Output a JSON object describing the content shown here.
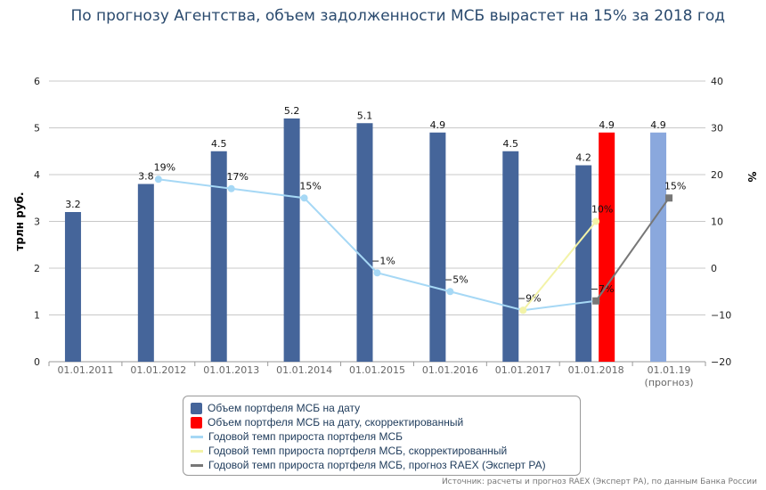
{
  "chart_data": {
    "type": "bar",
    "title": "По прогнозу Агентства, объем задолженности МСБ вырастет на 15% за 2018 год",
    "categories": [
      "01.01.2011",
      "01.01.2012",
      "01.01.2013",
      "01.01.2014",
      "01.01.2015",
      "01.01.2016",
      "01.01.2017",
      "01.01.2018",
      "01.01.19"
    ],
    "category_sublabels": {
      "8": "(прогноз)"
    },
    "ylabel": "трлн руб.",
    "y2label": "%",
    "ylim": [
      0,
      6
    ],
    "y2lim": [
      -20,
      40
    ],
    "yticks": [
      0,
      1,
      2,
      3,
      4,
      5,
      6
    ],
    "y2ticks": [
      -20,
      -10,
      0,
      10,
      20,
      30,
      40
    ],
    "grid": true,
    "legend_position": "bottom",
    "series": [
      {
        "name": "Объем портфеля МСБ на дату",
        "kind": "bar",
        "color": "#45659a",
        "values": [
          3.2,
          3.8,
          4.5,
          5.2,
          5.1,
          4.9,
          4.5,
          4.2,
          null
        ],
        "labels": [
          "3.2",
          "3.8",
          "4.5",
          "5.2",
          "5.1",
          "4.9",
          "4.5",
          "4.2",
          ""
        ]
      },
      {
        "name": "Объем портфеля МСБ на дату, скорректированный",
        "kind": "bar",
        "color": "#ff0000",
        "values": [
          null,
          null,
          null,
          null,
          null,
          null,
          null,
          4.9,
          null
        ],
        "labels": [
          "",
          "",
          "",
          "",
          "",
          "",
          "",
          "4.9",
          ""
        ]
      },
      {
        "name": "forecast-bar",
        "kind": "bar",
        "color": "#8aa8dd",
        "values": [
          null,
          null,
          null,
          null,
          null,
          null,
          null,
          null,
          4.9
        ],
        "labels": [
          "",
          "",
          "",
          "",
          "",
          "",
          "",
          "",
          "4.9"
        ]
      },
      {
        "name": "Годовой темп прироста портфеля МСБ",
        "kind": "line",
        "axis": "right",
        "color": "#a6d8f5",
        "values": [
          null,
          19,
          17,
          15,
          -1,
          -5,
          -9,
          -7,
          null
        ],
        "labels": [
          "",
          "19%",
          "17%",
          "15%",
          "−1%",
          "−5%",
          "−9%",
          "−7%",
          ""
        ]
      },
      {
        "name": "Годовой темп прироста портфеля МСБ, скорректированный",
        "kind": "line",
        "axis": "right",
        "color": "#f3f3a8",
        "values": [
          null,
          null,
          null,
          null,
          null,
          null,
          -9,
          10,
          null
        ],
        "labels": [
          "",
          "",
          "",
          "",
          "",
          "",
          "",
          "10%",
          ""
        ]
      },
      {
        "name": "Годовой темп прироста портфеля МСБ, прогноз RAEX (Эксперт РА)",
        "kind": "line",
        "axis": "right",
        "color": "#777777",
        "values": [
          null,
          null,
          null,
          null,
          null,
          null,
          null,
          -7,
          15
        ],
        "labels": [
          "",
          "",
          "",
          "",
          "",
          "",
          "",
          "",
          "15%"
        ]
      }
    ],
    "legend": [
      "Объем портфеля МСБ на дату",
      "Объем портфеля МСБ на дату, скорректированный",
      "Годовой темп прироста портфеля МСБ",
      "Годовой темп прироста портфеля МСБ, скорректированный",
      "Годовой темп прироста портфеля МСБ, прогноз RAEX (Эксперт РА)"
    ],
    "source": "Источник: расчеты и прогноз RAEX (Эксперт РА), по данным Банка России"
  }
}
